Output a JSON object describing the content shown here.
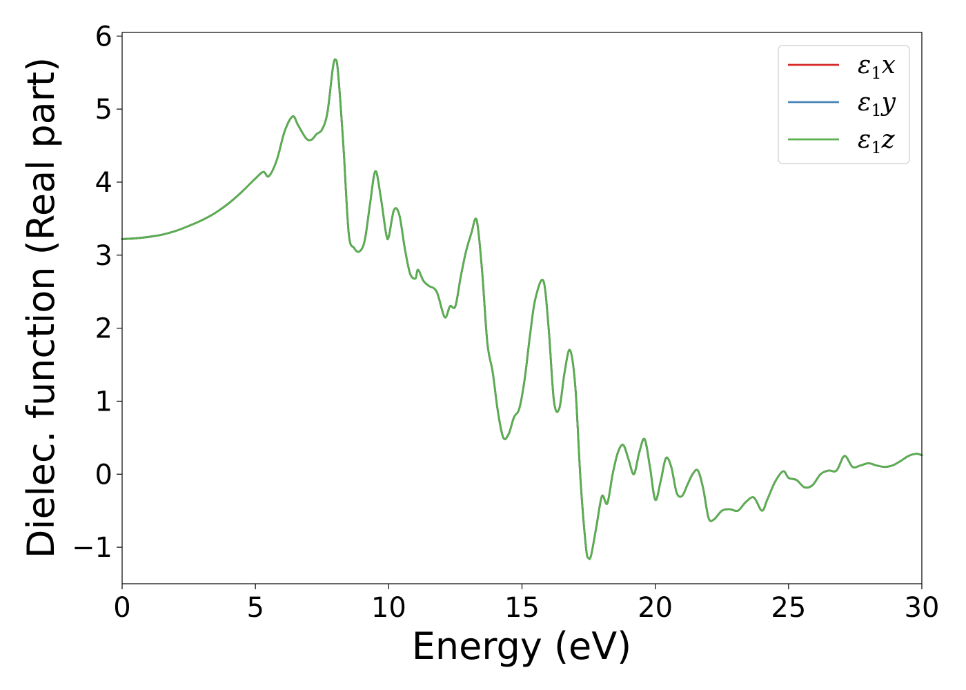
{
  "chart_data": {
    "type": "line",
    "title": "",
    "xlabel": "Energy (eV)",
    "ylabel": "Dielec. function (Real part)",
    "xlim": [
      0,
      30
    ],
    "ylim": [
      -1.5,
      6.05
    ],
    "xticks": [
      0,
      5,
      10,
      15,
      20,
      25,
      30
    ],
    "xtick_labels": [
      "0",
      "5",
      "10",
      "15",
      "20",
      "25",
      "30"
    ],
    "yticks": [
      -1,
      0,
      1,
      2,
      3,
      4,
      5,
      6
    ],
    "ytick_labels": [
      "−1",
      "0",
      "1",
      "2",
      "3",
      "4",
      "5",
      "6"
    ],
    "grid": false,
    "legend_position": "top-right",
    "x": [
      0,
      0.5,
      1,
      1.5,
      2,
      2.5,
      3,
      3.5,
      4,
      4.5,
      5,
      5.3,
      5.5,
      5.8,
      6.1,
      6.4,
      6.6,
      6.9,
      7.1,
      7.3,
      7.5,
      7.7,
      7.9,
      8.0,
      8.1,
      8.3,
      8.5,
      8.7,
      8.9,
      9.1,
      9.3,
      9.5,
      9.7,
      9.9,
      10.0,
      10.2,
      10.4,
      10.6,
      10.8,
      11.0,
      11.1,
      11.3,
      11.5,
      11.8,
      12.1,
      12.3,
      12.5,
      12.7,
      12.9,
      13.1,
      13.3,
      13.5,
      13.7,
      13.9,
      14.1,
      14.3,
      14.5,
      14.7,
      14.9,
      15.1,
      15.3,
      15.5,
      15.8,
      16.0,
      16.2,
      16.4,
      16.6,
      16.8,
      17.0,
      17.2,
      17.4,
      17.5,
      17.6,
      17.8,
      18.0,
      18.2,
      18.4,
      18.6,
      18.8,
      19.0,
      19.2,
      19.4,
      19.6,
      19.8,
      20.0,
      20.2,
      20.4,
      20.6,
      20.8,
      21.0,
      21.2,
      21.4,
      21.6,
      21.8,
      22.0,
      22.2,
      22.5,
      22.8,
      23.1,
      23.4,
      23.7,
      24.0,
      24.2,
      24.5,
      24.8,
      25.0,
      25.3,
      25.6,
      25.9,
      26.2,
      26.5,
      26.8,
      27.1,
      27.4,
      27.7,
      28.0,
      28.3,
      28.6,
      28.9,
      29.2,
      29.5,
      29.8,
      30.0
    ],
    "series": [
      {
        "name": "x",
        "color": "#d62728",
        "values": [
          3.22,
          3.23,
          3.25,
          3.28,
          3.33,
          3.4,
          3.48,
          3.58,
          3.71,
          3.87,
          4.05,
          4.14,
          4.08,
          4.3,
          4.7,
          4.9,
          4.78,
          4.6,
          4.58,
          4.66,
          4.72,
          4.95,
          5.55,
          5.68,
          5.5,
          4.5,
          3.3,
          3.1,
          3.05,
          3.2,
          3.7,
          4.15,
          3.8,
          3.3,
          3.25,
          3.62,
          3.55,
          3.1,
          2.75,
          2.68,
          2.8,
          2.65,
          2.58,
          2.5,
          2.15,
          2.3,
          2.3,
          2.7,
          3.05,
          3.3,
          3.48,
          2.8,
          1.8,
          1.4,
          0.85,
          0.5,
          0.55,
          0.78,
          0.9,
          1.3,
          1.9,
          2.4,
          2.65,
          2.0,
          1.0,
          0.9,
          1.4,
          1.7,
          1.2,
          -0.1,
          -1.0,
          -1.15,
          -1.1,
          -0.7,
          -0.3,
          -0.4,
          0.0,
          0.3,
          0.4,
          0.2,
          0.0,
          0.3,
          0.48,
          0.1,
          -0.35,
          -0.1,
          0.22,
          0.1,
          -0.25,
          -0.3,
          -0.15,
          0.0,
          0.05,
          -0.2,
          -0.6,
          -0.62,
          -0.5,
          -0.48,
          -0.5,
          -0.38,
          -0.32,
          -0.5,
          -0.35,
          -0.1,
          0.04,
          -0.05,
          -0.08,
          -0.18,
          -0.15,
          0.0,
          0.05,
          0.05,
          0.25,
          0.1,
          0.12,
          0.15,
          0.12,
          0.1,
          0.12,
          0.18,
          0.25,
          0.28,
          0.26
        ]
      },
      {
        "name": "y",
        "color": "#4682b4",
        "values": [
          3.22,
          3.23,
          3.25,
          3.28,
          3.33,
          3.4,
          3.48,
          3.58,
          3.71,
          3.87,
          4.05,
          4.14,
          4.08,
          4.3,
          4.7,
          4.9,
          4.78,
          4.6,
          4.58,
          4.66,
          4.72,
          4.95,
          5.55,
          5.68,
          5.5,
          4.5,
          3.3,
          3.1,
          3.05,
          3.2,
          3.7,
          4.15,
          3.8,
          3.3,
          3.25,
          3.62,
          3.55,
          3.1,
          2.75,
          2.68,
          2.8,
          2.65,
          2.58,
          2.5,
          2.15,
          2.3,
          2.3,
          2.7,
          3.05,
          3.3,
          3.48,
          2.8,
          1.8,
          1.4,
          0.85,
          0.5,
          0.55,
          0.78,
          0.9,
          1.3,
          1.9,
          2.4,
          2.65,
          2.0,
          1.0,
          0.9,
          1.4,
          1.7,
          1.2,
          -0.1,
          -1.0,
          -1.15,
          -1.1,
          -0.7,
          -0.3,
          -0.4,
          0.0,
          0.3,
          0.4,
          0.2,
          0.0,
          0.3,
          0.48,
          0.1,
          -0.35,
          -0.1,
          0.22,
          0.1,
          -0.25,
          -0.3,
          -0.15,
          0.0,
          0.05,
          -0.2,
          -0.6,
          -0.62,
          -0.5,
          -0.48,
          -0.5,
          -0.38,
          -0.32,
          -0.5,
          -0.35,
          -0.1,
          0.04,
          -0.05,
          -0.08,
          -0.18,
          -0.15,
          0.0,
          0.05,
          0.05,
          0.25,
          0.1,
          0.12,
          0.15,
          0.12,
          0.1,
          0.12,
          0.18,
          0.25,
          0.28,
          0.26
        ]
      },
      {
        "name": "z",
        "color": "#5aae4f",
        "values": [
          3.22,
          3.23,
          3.25,
          3.28,
          3.33,
          3.4,
          3.48,
          3.58,
          3.71,
          3.87,
          4.05,
          4.14,
          4.08,
          4.3,
          4.7,
          4.9,
          4.78,
          4.6,
          4.58,
          4.66,
          4.72,
          4.95,
          5.55,
          5.68,
          5.5,
          4.5,
          3.3,
          3.1,
          3.05,
          3.2,
          3.7,
          4.15,
          3.8,
          3.3,
          3.25,
          3.62,
          3.55,
          3.1,
          2.75,
          2.68,
          2.8,
          2.65,
          2.58,
          2.5,
          2.15,
          2.3,
          2.3,
          2.7,
          3.05,
          3.3,
          3.48,
          2.8,
          1.8,
          1.4,
          0.85,
          0.5,
          0.55,
          0.78,
          0.9,
          1.3,
          1.9,
          2.4,
          2.65,
          2.0,
          1.0,
          0.9,
          1.4,
          1.7,
          1.2,
          -0.1,
          -1.0,
          -1.15,
          -1.1,
          -0.7,
          -0.3,
          -0.4,
          0.0,
          0.3,
          0.4,
          0.2,
          0.0,
          0.3,
          0.48,
          0.1,
          -0.35,
          -0.1,
          0.22,
          0.1,
          -0.25,
          -0.3,
          -0.15,
          0.0,
          0.05,
          -0.2,
          -0.6,
          -0.62,
          -0.5,
          -0.48,
          -0.5,
          -0.38,
          -0.32,
          -0.5,
          -0.35,
          -0.1,
          0.04,
          -0.05,
          -0.08,
          -0.18,
          -0.15,
          0.0,
          0.05,
          0.05,
          0.25,
          0.1,
          0.12,
          0.15,
          0.12,
          0.1,
          0.12,
          0.18,
          0.25,
          0.28,
          0.26
        ]
      }
    ],
    "legend": [
      {
        "symbol": "ε",
        "sub": "1",
        "axis": "x"
      },
      {
        "symbol": "ε",
        "sub": "1",
        "axis": "y"
      },
      {
        "symbol": "ε",
        "sub": "1",
        "axis": "z"
      }
    ]
  }
}
